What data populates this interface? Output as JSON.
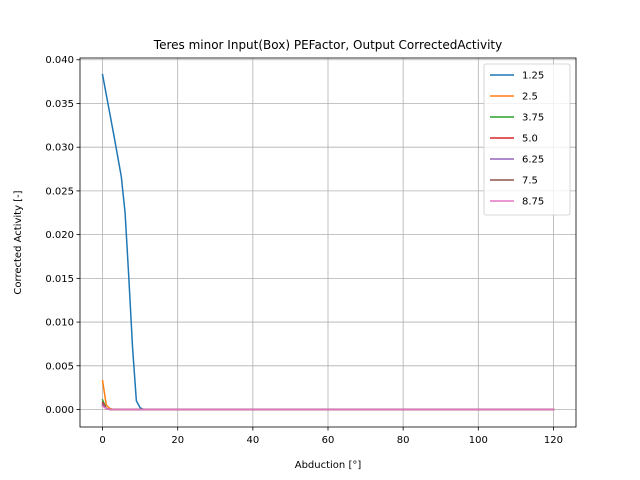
{
  "chart_data": {
    "type": "line",
    "title": "Teres minor Input(Box) PEFactor, Output CorrectedActivity",
    "xlabel": "Abduction [°]",
    "ylabel": "Corrected Activity [-]",
    "xlim": [
      -6,
      126
    ],
    "ylim": [
      -0.002,
      0.0402
    ],
    "xticks": [
      0,
      20,
      40,
      60,
      80,
      100,
      120
    ],
    "yticks": [
      0.0,
      0.005,
      0.01,
      0.015,
      0.02,
      0.025,
      0.03,
      0.035,
      0.04
    ],
    "ytick_labels": [
      "0.000",
      "0.005",
      "0.010",
      "0.015",
      "0.020",
      "0.025",
      "0.030",
      "0.035",
      "0.040"
    ],
    "grid": true,
    "legend_position": "top-right",
    "series": [
      {
        "name": "1.25",
        "color": "#1f77b4",
        "x": [
          0,
          1,
          2,
          3,
          4,
          5,
          6,
          7,
          8,
          9,
          10,
          11,
          20,
          40,
          60,
          80,
          100,
          120
        ],
        "y": [
          0.0383,
          0.036,
          0.0337,
          0.0314,
          0.029,
          0.0266,
          0.0225,
          0.015,
          0.007,
          0.001,
          0.0002,
          0,
          0,
          0,
          0,
          0,
          0,
          0
        ]
      },
      {
        "name": "2.5",
        "color": "#ff7f0e",
        "x": [
          0,
          1,
          2,
          3,
          120
        ],
        "y": [
          0.0033,
          0.0005,
          0.0001,
          0,
          0
        ]
      },
      {
        "name": "3.75",
        "color": "#2ca02c",
        "x": [
          0,
          1,
          2,
          120
        ],
        "y": [
          0.0011,
          0.0001,
          0,
          0
        ]
      },
      {
        "name": "5.0",
        "color": "#d62728",
        "x": [
          0,
          1,
          2,
          120
        ],
        "y": [
          0.0008,
          0.0001,
          0,
          0
        ]
      },
      {
        "name": "6.25",
        "color": "#9467bd",
        "x": [
          0,
          1,
          2,
          120
        ],
        "y": [
          0.0006,
          0.0001,
          0,
          0
        ]
      },
      {
        "name": "7.5",
        "color": "#8c564b",
        "x": [
          0,
          1,
          2,
          120
        ],
        "y": [
          0.0005,
          0.0001,
          0,
          0
        ]
      },
      {
        "name": "8.75",
        "color": "#e377c2",
        "x": [
          0,
          1,
          2,
          120
        ],
        "y": [
          0.0004,
          0.0001,
          0,
          0
        ]
      }
    ]
  }
}
